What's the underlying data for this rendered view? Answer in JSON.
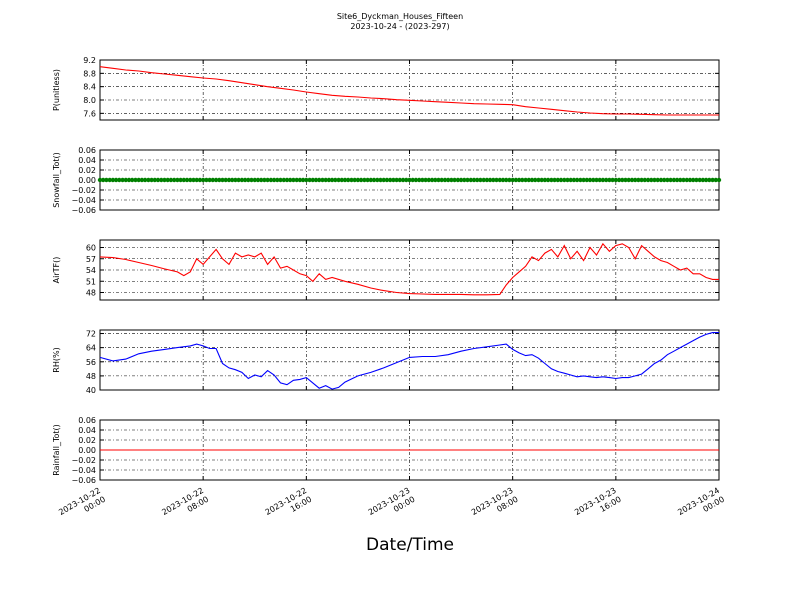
{
  "figure": {
    "title_line1": "Site6_Dyckman_Houses_Fifteen",
    "title_line2": "2023-10-24 - (2023-297)",
    "xlabel": "Date/Time"
  },
  "x_ticks": [
    {
      "line1": "2023-10-22",
      "line2": "00:00"
    },
    {
      "line1": "2023-10-22",
      "line2": "08:00"
    },
    {
      "line1": "2023-10-22",
      "line2": "16:00"
    },
    {
      "line1": "2023-10-23",
      "line2": "00:00"
    },
    {
      "line1": "2023-10-23",
      "line2": "08:00"
    },
    {
      "line1": "2023-10-23",
      "line2": "16:00"
    },
    {
      "line1": "2023-10-24",
      "line2": "00:00"
    }
  ],
  "chart_data": [
    {
      "type": "line",
      "ylabel": "P(unitless)",
      "ylim": [
        7.4,
        9.2
      ],
      "yticks": [
        "9.2",
        "8.8",
        "8.4",
        "8.0",
        "7.6"
      ],
      "ytick_values": [
        9.2,
        8.8,
        8.4,
        8.0,
        7.6
      ],
      "grid": true,
      "series": [
        {
          "color": "#ff0000",
          "marker": false,
          "x_hours": [
            0,
            1,
            2,
            3,
            4,
            5,
            6,
            7,
            8,
            9,
            10,
            11,
            12,
            13,
            14,
            15,
            16,
            17,
            18,
            19,
            20,
            21,
            22,
            23,
            24,
            25,
            26,
            27,
            28,
            29,
            30,
            31,
            32,
            33,
            34,
            35,
            36,
            37,
            38,
            39,
            40,
            41,
            42,
            43,
            44,
            45,
            46,
            47,
            48
          ],
          "values": [
            9.0,
            8.95,
            8.9,
            8.87,
            8.82,
            8.78,
            8.74,
            8.7,
            8.66,
            8.63,
            8.58,
            8.52,
            8.46,
            8.4,
            8.35,
            8.3,
            8.24,
            8.19,
            8.14,
            8.11,
            8.09,
            8.06,
            8.04,
            8.01,
            7.99,
            7.97,
            7.95,
            7.93,
            7.91,
            7.89,
            7.88,
            7.87,
            7.86,
            7.8,
            7.76,
            7.72,
            7.68,
            7.64,
            7.61,
            7.59,
            7.58,
            7.58,
            7.57,
            7.56,
            7.55,
            7.55,
            7.55,
            7.55,
            7.55
          ]
        }
      ]
    },
    {
      "type": "line",
      "ylabel": "Snowfall_Tot()",
      "ylim": [
        -0.06,
        0.06
      ],
      "yticks": [
        "0.06",
        "0.04",
        "0.02",
        "0.00",
        "−0.02",
        "−0.04",
        "−0.06"
      ],
      "ytick_values": [
        0.06,
        0.04,
        0.02,
        0.0,
        -0.02,
        -0.04,
        -0.06
      ],
      "grid": true,
      "series": [
        {
          "color": "#008000",
          "marker": true,
          "x_hours": [
            0,
            48
          ],
          "values": [
            0.0,
            0.0
          ]
        }
      ]
    },
    {
      "type": "line",
      "ylabel": "AirTF()",
      "ylim": [
        46,
        62
      ],
      "yticks": [
        "60",
        "57",
        "54",
        "51",
        "48"
      ],
      "ytick_values": [
        60,
        57,
        54,
        51,
        48
      ],
      "grid": true,
      "series": [
        {
          "color": "#ff0000",
          "marker": false,
          "x_hours": [
            0,
            1,
            2,
            3,
            4,
            5,
            6,
            6.5,
            7,
            7.5,
            8,
            8.5,
            9,
            9.5,
            10,
            10.5,
            11,
            11.5,
            12,
            12.5,
            13,
            13.5,
            14,
            14.5,
            15,
            15.5,
            16,
            16.5,
            17,
            17.5,
            18,
            19,
            20,
            21,
            22,
            23,
            24,
            25,
            26,
            27,
            28,
            29,
            30,
            31,
            31.5,
            32,
            32.5,
            33,
            33.5,
            34,
            34.5,
            35,
            35.5,
            36,
            36.5,
            37,
            37.5,
            38,
            38.5,
            39,
            39.5,
            40,
            40.5,
            41,
            41.5,
            42,
            42.5,
            43,
            43.5,
            44,
            44.5,
            45,
            45.5,
            46,
            46.5,
            47,
            47.5,
            48
          ],
          "values": [
            57.5,
            57.3,
            56.8,
            56.0,
            55.2,
            54.3,
            53.5,
            52.5,
            53.5,
            57.0,
            55.5,
            57.5,
            59.5,
            57.0,
            55.5,
            58.5,
            57.5,
            58.0,
            57.5,
            58.5,
            55.5,
            57.5,
            54.5,
            55.0,
            54.0,
            53.0,
            52.5,
            51.0,
            53.0,
            51.5,
            52.0,
            51.0,
            50.2,
            49.2,
            48.5,
            48.0,
            47.7,
            47.6,
            47.5,
            47.5,
            47.5,
            47.4,
            47.4,
            47.5,
            50.0,
            52.0,
            53.5,
            55.0,
            57.5,
            56.5,
            58.5,
            59.5,
            57.5,
            60.5,
            57.0,
            59.0,
            56.5,
            60.0,
            58.0,
            61.0,
            59.0,
            60.5,
            61.0,
            60.0,
            57.0,
            60.5,
            59.0,
            57.5,
            56.5,
            56.0,
            55.0,
            54.0,
            54.5,
            53.0,
            53.0,
            52.0,
            51.5,
            51.5
          ]
        }
      ]
    },
    {
      "type": "line",
      "ylabel": "RH(%)",
      "ylim": [
        40,
        74
      ],
      "yticks": [
        "72",
        "64",
        "56",
        "48",
        "40"
      ],
      "ytick_values": [
        72,
        64,
        56,
        48,
        40
      ],
      "grid": true,
      "series": [
        {
          "color": "#0000ff",
          "marker": false,
          "x_hours": [
            0,
            1,
            2,
            3,
            4,
            5,
            6,
            7,
            7.5,
            8,
            8.5,
            9,
            9.5,
            10,
            10.5,
            11,
            11.5,
            12,
            12.5,
            13,
            13.5,
            14,
            14.5,
            15,
            15.5,
            16,
            16.5,
            17,
            17.5,
            18,
            18.5,
            19,
            20,
            21,
            22,
            23,
            24,
            25,
            26,
            27,
            28,
            29,
            30,
            31,
            31.5,
            32,
            32.5,
            33,
            33.5,
            34,
            34.5,
            35,
            35.5,
            36,
            36.5,
            37,
            37.5,
            38,
            38.5,
            39,
            39.5,
            40,
            40.5,
            41,
            41.5,
            42,
            42.5,
            43,
            43.5,
            44,
            44.5,
            45,
            45.5,
            46,
            46.5,
            47,
            47.5,
            48
          ],
          "values": [
            58.5,
            56.5,
            57.5,
            60.5,
            62.0,
            63.0,
            64.0,
            65.0,
            66.0,
            65.0,
            63.5,
            63.5,
            55.0,
            52.5,
            51.5,
            50.0,
            46.5,
            48.5,
            47.5,
            51.0,
            48.5,
            44.0,
            43.0,
            45.5,
            46.0,
            47.0,
            44.0,
            41.0,
            42.5,
            40.5,
            41.5,
            44.5,
            48.0,
            50.0,
            52.5,
            55.5,
            58.5,
            59.0,
            59.0,
            60.0,
            62.0,
            63.5,
            64.5,
            65.5,
            66.0,
            63.0,
            61.0,
            59.5,
            60.0,
            58.0,
            55.0,
            52.0,
            50.5,
            49.5,
            48.5,
            47.5,
            48.0,
            47.5,
            47.0,
            47.5,
            47.0,
            46.5,
            47.0,
            47.0,
            48.0,
            49.0,
            52.0,
            55.0,
            57.0,
            60.0,
            62.0,
            64.0,
            66.0,
            68.0,
            70.0,
            71.5,
            72.5,
            72.5
          ]
        }
      ]
    },
    {
      "type": "line",
      "ylabel": "Rainfall_Tot()",
      "ylim": [
        -0.06,
        0.06
      ],
      "yticks": [
        "0.06",
        "0.04",
        "0.02",
        "0.00",
        "−0.02",
        "−0.04",
        "−0.06"
      ],
      "ytick_values": [
        0.06,
        0.04,
        0.02,
        0.0,
        -0.02,
        -0.04,
        -0.06
      ],
      "grid": true,
      "series": [
        {
          "color": "#ff0000",
          "marker": false,
          "x_hours": [
            0,
            48
          ],
          "values": [
            0.0,
            0.0
          ]
        }
      ]
    }
  ]
}
